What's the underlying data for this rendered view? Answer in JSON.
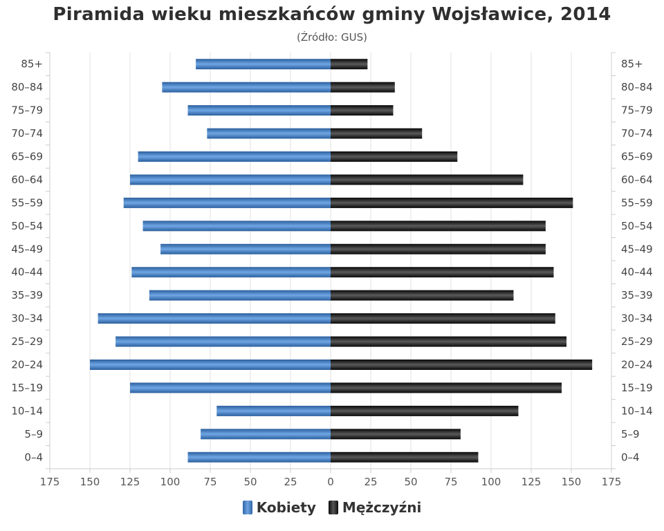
{
  "chart_data": {
    "type": "bar",
    "orientation": "horizontal",
    "layout": "population-pyramid",
    "title": "Piramida wieku mieszkańców gminy Wojsławice, 2014",
    "subtitle": "(Źródło: GUS)",
    "categories": [
      "85+",
      "80–84",
      "75–79",
      "70–74",
      "65–69",
      "60–64",
      "55–59",
      "50–54",
      "45–49",
      "40–44",
      "35–39",
      "30–34",
      "25–29",
      "20–24",
      "15–19",
      "10–14",
      "5–9",
      "0–4"
    ],
    "series": [
      {
        "name": "Kobiety",
        "side": "left",
        "color": "#3a74b8",
        "values": [
          84,
          105,
          89,
          77,
          120,
          125,
          129,
          117,
          106,
          124,
          113,
          145,
          134,
          150,
          125,
          71,
          81,
          89
        ]
      },
      {
        "name": "Mężczyźni",
        "side": "right",
        "color": "#111111",
        "values": [
          23,
          40,
          39,
          57,
          79,
          120,
          151,
          134,
          134,
          139,
          114,
          140,
          147,
          163,
          144,
          117,
          81,
          92
        ]
      }
    ],
    "xlim": [
      -175,
      175
    ],
    "x_ticks": [
      "175",
      "150",
      "125",
      "100",
      "75",
      "50",
      "25",
      "0",
      "25",
      "50",
      "75",
      "100",
      "125",
      "150",
      "175"
    ],
    "x_tick_values": [
      -175,
      -150,
      -125,
      -100,
      -75,
      -50,
      -25,
      0,
      25,
      50,
      75,
      100,
      125,
      150,
      175
    ],
    "grid": "vertical",
    "legend_position": "bottom-center",
    "category_labels": "both-sides"
  }
}
